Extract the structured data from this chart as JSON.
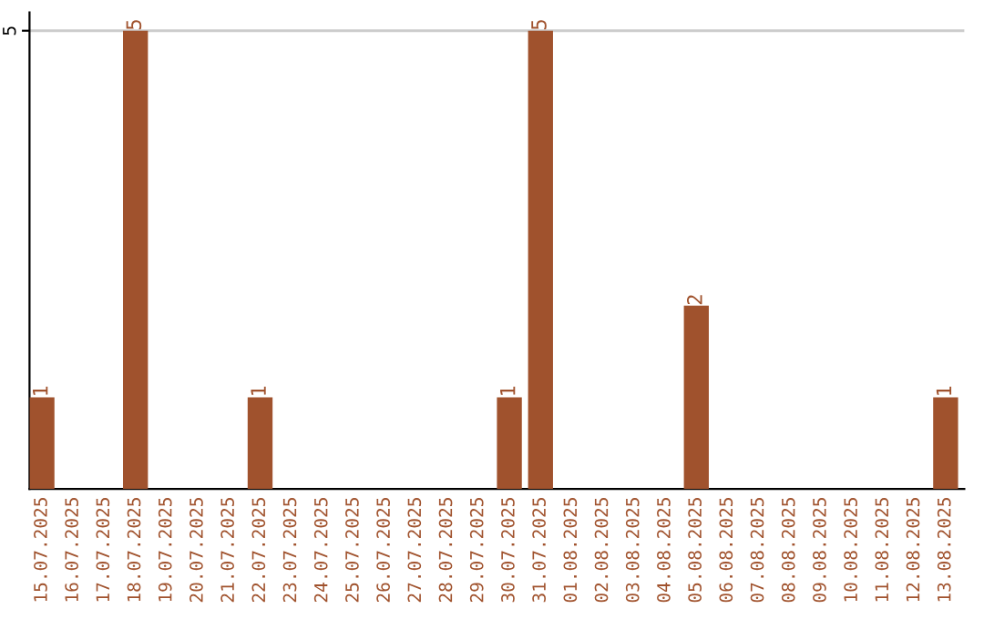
{
  "chart_data": {
    "type": "bar",
    "categories": [
      "15.07.2025",
      "16.07.2025",
      "17.07.2025",
      "18.07.2025",
      "19.07.2025",
      "20.07.2025",
      "21.07.2025",
      "22.07.2025",
      "23.07.2025",
      "24.07.2025",
      "25.07.2025",
      "26.07.2025",
      "27.07.2025",
      "28.07.2025",
      "29.07.2025",
      "30.07.2025",
      "31.07.2025",
      "01.08.2025",
      "02.08.2025",
      "03.08.2025",
      "04.08.2025",
      "05.08.2025",
      "06.08.2025",
      "07.08.2025",
      "08.08.2025",
      "09.08.2025",
      "10.08.2025",
      "11.08.2025",
      "12.08.2025",
      "13.08.2025"
    ],
    "values": [
      1,
      0,
      0,
      5,
      0,
      0,
      0,
      1,
      0,
      0,
      0,
      0,
      0,
      0,
      0,
      1,
      5,
      0,
      0,
      0,
      0,
      2,
      0,
      0,
      0,
      0,
      0,
      0,
      0,
      1
    ],
    "value_labels": [
      "1",
      null,
      null,
      "5",
      null,
      null,
      null,
      "1",
      null,
      null,
      null,
      null,
      null,
      null,
      null,
      "1",
      "5",
      null,
      null,
      null,
      null,
      "2",
      null,
      null,
      null,
      null,
      null,
      null,
      null,
      "1"
    ],
    "color": "#a0522d",
    "ylim": [
      0,
      5.2
    ],
    "yticks": [
      5
    ],
    "grid": "y"
  }
}
